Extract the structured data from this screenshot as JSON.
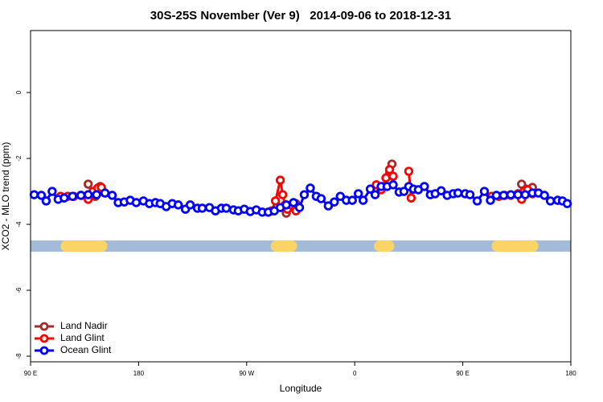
{
  "chart_data": {
    "type": "line",
    "title": "30S-25S November (Ver 9)   2014-09-06 to 2018-12-31",
    "x_label": "Longitude",
    "y_label": "XCO2 - MLO trend (ppm)",
    "xlim": [
      90,
      540
    ],
    "ylim": [
      -8.17,
      1.88
    ],
    "xticks": [
      {
        "value": 90,
        "label": "90 E"
      },
      180,
      {
        "value": 270,
        "label": "90 W"
      },
      {
        "value": 360,
        "label": "0"
      },
      {
        "value": 450,
        "label": "90 E"
      },
      {
        "value": 540,
        "label": "180"
      }
    ],
    "yticks": [
      -8,
      -6,
      -4,
      -2,
      0
    ],
    "legend": "bottom-left",
    "band": {
      "y": -4.66,
      "color": "#a3bbd8",
      "land_color": "#fcd466",
      "land": [
        [
          115,
          154
        ],
        [
          290,
          312
        ],
        [
          376,
          393
        ],
        [
          474,
          513
        ]
      ]
    },
    "series": [
      {
        "name": "Land Nadir",
        "color": "#a52a2a",
        "x": [
          138,
          144,
          148,
          null,
          303,
          311,
          null,
          389,
          391,
          null,
          499,
          508
        ],
        "values": [
          -2.78,
          -3.15,
          -2.85,
          null,
          -3.66,
          -3.37,
          null,
          -2.46,
          -2.17,
          null,
          -2.78,
          -2.88
        ]
      },
      {
        "name": "Land Glint",
        "color": "#ff0000",
        "x": [
          115,
          121,
          126,
          132,
          138,
          142,
          146,
          149,
          152,
          null,
          291,
          294,
          298,
          300,
          302,
          304,
          307,
          311,
          null,
          378,
          382,
          386,
          389,
          392,
          null,
          405,
          407,
          null,
          474,
          480,
          485,
          490,
          496,
          499,
          501,
          504,
          508
        ],
        "values": [
          -3.15,
          -3.15,
          -3.15,
          -3.12,
          -3.24,
          -3.0,
          -2.9,
          -2.88,
          -3.05,
          null,
          -3.59,
          -3.29,
          -2.66,
          -3.1,
          -3.41,
          -3.54,
          -3.41,
          -3.59,
          null,
          -2.8,
          -2.95,
          -2.59,
          -2.34,
          -2.54,
          null,
          -2.39,
          -3.2,
          null,
          -3.15,
          -3.15,
          -3.12,
          -3.12,
          -3.07,
          -3.24,
          -3.0,
          -2.95,
          -3.07
        ]
      },
      {
        "name": "Ocean Glint",
        "color": "#0000ff",
        "x": [
          93,
          99,
          103,
          108,
          113,
          118,
          125,
          132,
          138,
          145,
          152,
          158,
          163,
          168,
          173,
          178,
          184,
          189,
          194,
          198,
          203,
          208,
          213,
          219,
          223,
          229,
          233,
          239,
          244,
          249,
          253,
          259,
          263,
          268,
          273,
          278,
          283,
          288,
          293,
          298,
          303,
          309,
          314,
          318,
          323,
          328,
          332,
          338,
          343,
          348,
          353,
          358,
          363,
          367,
          373,
          377,
          382,
          387,
          392,
          397,
          401,
          405,
          409,
          413,
          418,
          423,
          427,
          432,
          437,
          442,
          446,
          452,
          456,
          462,
          468,
          473,
          478,
          484,
          490,
          496,
          502,
          508,
          513,
          518,
          523,
          529,
          533,
          537
        ],
        "values": [
          -3.1,
          -3.12,
          -3.29,
          -3.0,
          -3.24,
          -3.2,
          -3.15,
          -3.12,
          -3.1,
          -3.1,
          -3.05,
          -3.12,
          -3.34,
          -3.32,
          -3.27,
          -3.34,
          -3.29,
          -3.37,
          -3.34,
          -3.37,
          -3.46,
          -3.37,
          -3.41,
          -3.54,
          -3.41,
          -3.51,
          -3.51,
          -3.49,
          -3.59,
          -3.51,
          -3.51,
          -3.56,
          -3.59,
          -3.54,
          -3.61,
          -3.56,
          -3.63,
          -3.63,
          -3.59,
          -3.49,
          -3.41,
          -3.34,
          -3.49,
          -3.1,
          -2.9,
          -3.15,
          -3.22,
          -3.44,
          -3.32,
          -3.15,
          -3.27,
          -3.27,
          -3.07,
          -3.27,
          -2.93,
          -3.1,
          -2.85,
          -2.85,
          -2.8,
          -3.02,
          -3.0,
          -2.85,
          -2.93,
          -2.95,
          -2.85,
          -3.1,
          -3.07,
          -2.98,
          -3.12,
          -3.07,
          -3.05,
          -3.07,
          -3.1,
          -3.29,
          -3.0,
          -3.27,
          -3.12,
          -3.12,
          -3.1,
          -3.1,
          -3.1,
          -3.05,
          -3.05,
          -3.12,
          -3.29,
          -3.27,
          -3.29,
          -3.37
        ]
      }
    ]
  }
}
